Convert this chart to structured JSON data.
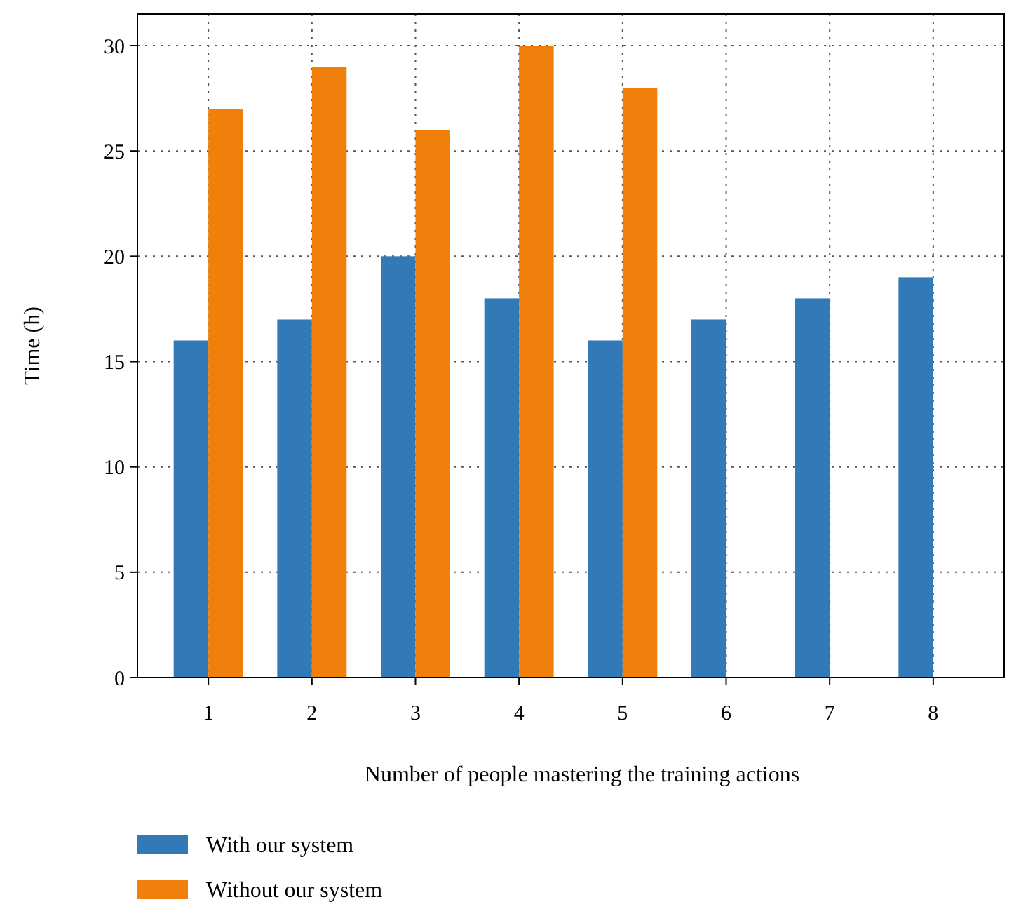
{
  "chart_data": {
    "type": "bar",
    "xlabel": "Number of people mastering the training actions",
    "ylabel": "Time (h)",
    "categories": [
      "1",
      "2",
      "3",
      "4",
      "5",
      "6",
      "7",
      "8"
    ],
    "series": [
      {
        "name": "With our system",
        "color": "#3279b8",
        "values": [
          16,
          17,
          20,
          18,
          16,
          17,
          18,
          19
        ]
      },
      {
        "name": "Without our system",
        "color": "#f07f0c",
        "values": [
          27,
          29,
          26,
          30,
          28,
          null,
          null,
          null
        ]
      }
    ],
    "ylim": [
      0,
      31.5
    ],
    "yticks": [
      0,
      5,
      10,
      15,
      20,
      25,
      30
    ],
    "grid": true,
    "legend": "bottom"
  }
}
